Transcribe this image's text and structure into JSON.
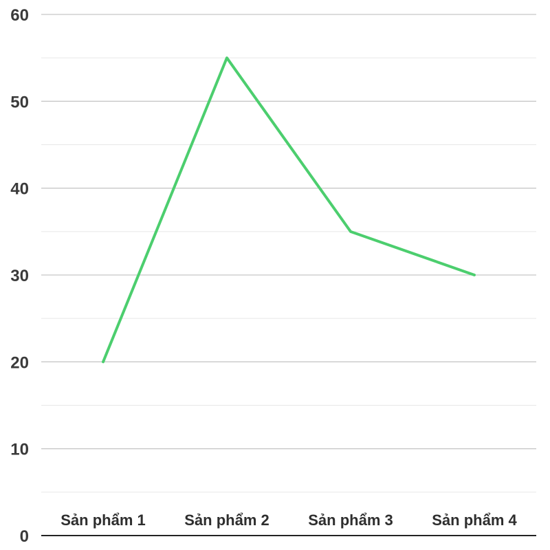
{
  "colors": {
    "series": "#4cce6e",
    "gridMajor": "#c8c8c8",
    "gridMinor": "#e6e6e6",
    "axis": "#222222"
  },
  "chart_data": {
    "type": "line",
    "categories": [
      "Sản phẩm 1",
      "Sản phẩm 2",
      "Sản phẩm 3",
      "Sản phẩm 4"
    ],
    "series": [
      {
        "values": [
          20,
          55,
          35,
          30
        ]
      }
    ],
    "ylim": [
      0,
      60
    ],
    "yticks": [
      "0",
      "10",
      "20",
      "30",
      "40",
      "50",
      "60"
    ],
    "minor_grid": true,
    "grid": true,
    "legend": "none"
  }
}
